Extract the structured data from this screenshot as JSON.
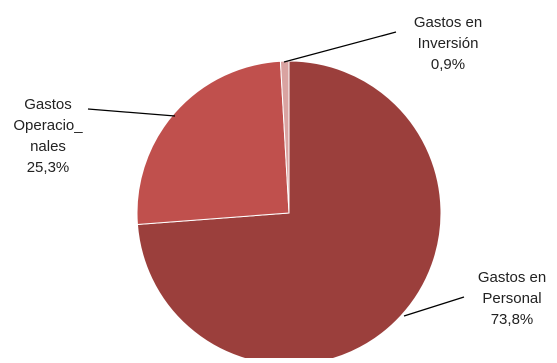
{
  "chart_data": {
    "type": "pie",
    "title": "",
    "slices": [
      {
        "label_lines": [
          "Gastos en",
          "Personal"
        ],
        "value": 73.8,
        "value_text": "73,8%",
        "color": "#9b3f3c"
      },
      {
        "label_lines": [
          "Gastos",
          "Operacio_",
          "nales"
        ],
        "value": 25.3,
        "value_text": "25,3%",
        "color": "#c0504d"
      },
      {
        "label_lines": [
          "Gastos en",
          "Inversión"
        ],
        "value": 0.9,
        "value_text": "0,9%",
        "color": "#d9a3a1"
      }
    ],
    "legend": "none",
    "start_angle": "12 o'clock",
    "direction": "clockwise"
  }
}
